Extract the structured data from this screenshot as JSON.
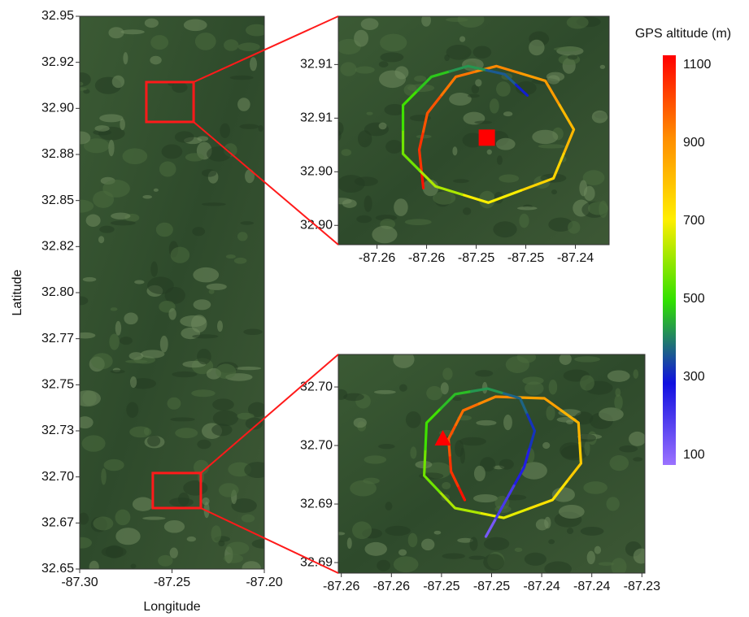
{
  "chart_data": [
    {
      "type": "map",
      "xlabel": "Longitude",
      "ylabel": "Latitude",
      "xlim": [
        -87.3,
        -87.2
      ],
      "ylim": [
        32.65,
        32.95
      ],
      "xticks": [
        {
          "value": -87.3,
          "label": "-87.30"
        },
        {
          "value": -87.25,
          "label": "-87.25"
        },
        {
          "value": -87.2,
          "label": "-87.20"
        }
      ],
      "yticks": [
        {
          "value": 32.65,
          "label": "32.65"
        },
        {
          "value": 32.675,
          "label": "32.67"
        },
        {
          "value": 32.7,
          "label": "32.70"
        },
        {
          "value": 32.725,
          "label": "32.73"
        },
        {
          "value": 32.75,
          "label": "32.75"
        },
        {
          "value": 32.775,
          "label": "32.77"
        },
        {
          "value": 32.8,
          "label": "32.80"
        },
        {
          "value": 32.825,
          "label": "32.82"
        },
        {
          "value": 32.85,
          "label": "32.85"
        },
        {
          "value": 32.875,
          "label": "32.88"
        },
        {
          "value": 32.9,
          "label": "32.90"
        },
        {
          "value": 32.925,
          "label": "32.92"
        },
        {
          "value": 32.95,
          "label": "32.95"
        }
      ],
      "regions": [
        {
          "xlim": [
            -87.2639,
            -87.2383
          ],
          "ylim": [
            32.89266,
            32.91427
          ],
          "color": "#ff1a1a"
        },
        {
          "xlim": [
            -87.2604,
            -87.2344
          ],
          "ylim": [
            32.6831,
            32.7021
          ],
          "color": "#ff1a1a"
        }
      ]
    },
    {
      "type": "map",
      "xlim": [
        -87.2664,
        -87.2391
      ],
      "ylim": [
        32.8957,
        32.917
      ],
      "xticks": [
        {
          "value": -87.2625,
          "label": "-87.26"
        },
        {
          "value": -87.2575,
          "label": "-87.26"
        },
        {
          "value": -87.2525,
          "label": "-87.25"
        },
        {
          "value": -87.2475,
          "label": "-87.25"
        },
        {
          "value": -87.2425,
          "label": "-87.24"
        }
      ],
      "yticks": [
        {
          "value": 32.8975,
          "label": "32.90"
        },
        {
          "value": 32.9025,
          "label": "32.90"
        },
        {
          "value": 32.9075,
          "label": "32.91"
        },
        {
          "value": 32.9125,
          "label": "32.91"
        }
      ],
      "track": {
        "x": [
          -87.25783,
          -87.25824,
          -87.25742,
          -87.25455,
          -87.25045,
          -87.24553,
          -87.24266,
          -87.24471,
          -87.25127,
          -87.2566,
          -87.25988,
          -87.25988,
          -87.25701,
          -87.25332,
          -87.24963,
          -87.24734
        ],
        "y": [
          32.90098,
          32.90455,
          32.90796,
          32.91136,
          32.91235,
          32.91098,
          32.90644,
          32.90189,
          32.89962,
          32.90114,
          32.90417,
          32.90871,
          32.91136,
          32.91235,
          32.91159,
          32.90962
        ],
        "c": [
          1100,
          1050,
          1000,
          950,
          920,
          880,
          820,
          760,
          700,
          620,
          560,
          510,
          470,
          420,
          360,
          300
        ]
      },
      "marker": {
        "shape": "square",
        "x": -87.25143,
        "y": 32.90568,
        "color": "#ff0000"
      }
    },
    {
      "type": "map",
      "xlim": [
        -87.2628,
        -87.2322
      ],
      "ylim": [
        32.6866,
        32.70528
      ],
      "xticks": [
        {
          "value": -87.2625,
          "label": "-87.26"
        },
        {
          "value": -87.2575,
          "label": "-87.26"
        },
        {
          "value": -87.2525,
          "label": "-87.25"
        },
        {
          "value": -87.2475,
          "label": "-87.25"
        },
        {
          "value": -87.2425,
          "label": "-87.24"
        },
        {
          "value": -87.2375,
          "label": "-87.24"
        },
        {
          "value": -87.2325,
          "label": "-87.23"
        }
      ],
      "yticks": [
        {
          "value": 32.6875,
          "label": "32.69"
        },
        {
          "value": 32.6925,
          "label": "32.69"
        },
        {
          "value": 32.6975,
          "label": "32.70"
        },
        {
          "value": 32.7025,
          "label": "32.70"
        }
      ],
      "track": {
        "x": [
          -87.25018,
          -87.25155,
          -87.2518,
          -87.25034,
          -87.2471,
          -87.24223,
          -87.23883,
          -87.23858,
          -87.24142,
          -87.24628,
          -87.25115,
          -87.25423,
          -87.25399,
          -87.25115,
          -87.24791,
          -87.24466,
          -87.2432,
          -87.24426,
          -87.24628,
          -87.24807
        ],
        "y": [
          32.69285,
          32.69528,
          32.69806,
          32.70049,
          32.70167,
          32.70153,
          32.69944,
          32.69597,
          32.69285,
          32.69132,
          32.69215,
          32.69493,
          32.69944,
          32.70188,
          32.70236,
          32.70153,
          32.69875,
          32.69563,
          32.6925,
          32.68972
        ],
        "c": [
          1100,
          1050,
          1000,
          960,
          920,
          870,
          830,
          780,
          730,
          680,
          620,
          560,
          510,
          460,
          420,
          370,
          320,
          260,
          200,
          130
        ]
      },
      "marker": {
        "shape": "triangle",
        "x": -87.25237,
        "y": 32.69806,
        "color": "#ff0000"
      }
    },
    {
      "type": "colorbar",
      "title": "GPS altitude (m)",
      "clim": [
        75,
        1125
      ],
      "ticks": [
        100,
        300,
        500,
        700,
        900,
        1100
      ],
      "colors": [
        "#9b72ff",
        "#1010e0",
        "#30e000",
        "#ffee00",
        "#ff8c00",
        "#ff0000"
      ]
    }
  ]
}
